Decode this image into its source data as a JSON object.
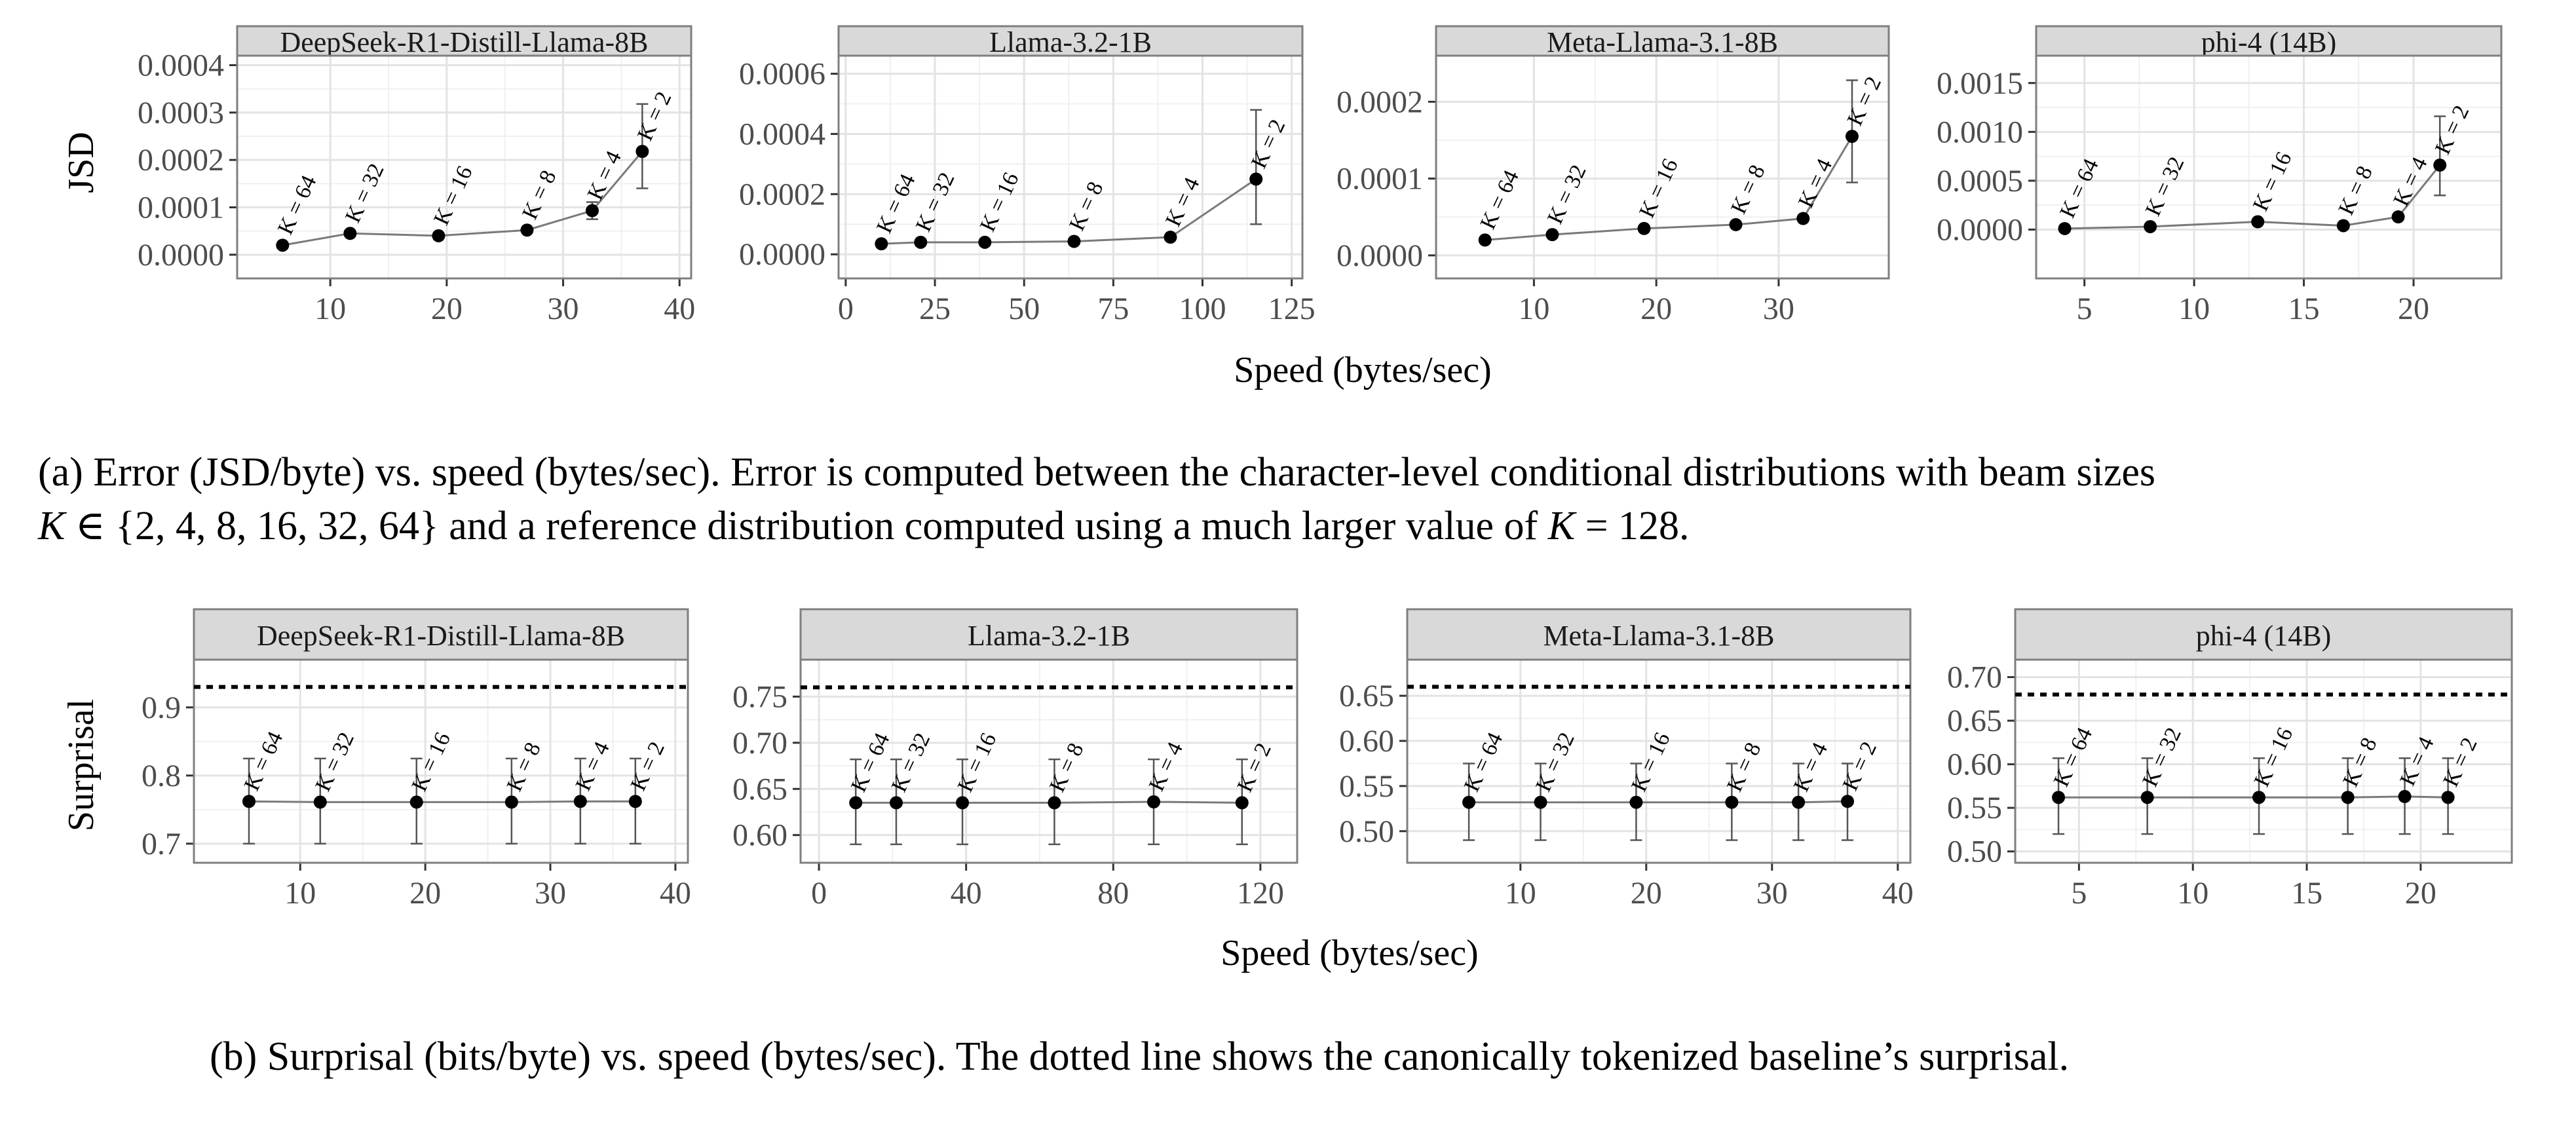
{
  "figure_a": {
    "y_title": "JSD",
    "x_title": "Speed (bytes/sec)",
    "caption_line1": "(a) Error (JSD/byte) vs. speed (bytes/sec). Error is computed between the character-level conditional distributions with beam sizes",
    "caption_line2_parts": [
      "K",
      " ∈ {2, 4, 8, 16, 32, 64} and a reference distribution computed using a much larger value of ",
      "K",
      " = 128."
    ]
  },
  "figure_b": {
    "y_title": "Surprisal",
    "x_title": "Speed (bytes/sec)",
    "caption": "(b) Surprisal (bits/byte) vs. speed (bytes/sec). The dotted line shows the canonically tokenized baseline’s surprisal."
  },
  "k_labels": [
    "K = 64",
    "K = 32",
    "K = 16",
    "K = 8",
    "K = 4",
    "K = 2"
  ],
  "chart_data": [
    {
      "type": "line",
      "row": "a",
      "title": "DeepSeek-R1-Distill-Llama-8B",
      "xlabel": "Speed (bytes/sec)",
      "ylabel": "JSD",
      "xlim": [
        2,
        41
      ],
      "ylim": [
        -5e-05,
        0.00042
      ],
      "xticks": [
        10,
        20,
        30,
        40
      ],
      "xtick_labels": [
        "10",
        "20",
        "30",
        "40"
      ],
      "yticks": [
        0,
        0.0001,
        0.0002,
        0.0003,
        0.0004
      ],
      "ytick_labels": [
        "0.0000",
        "0.0001",
        "0.0002",
        "0.0003",
        "0.0004"
      ],
      "x": [
        5.9,
        11.7,
        19.3,
        26.9,
        32.5,
        36.8
      ],
      "y": [
        2e-05,
        4.5e-05,
        4e-05,
        5.2e-05,
        9.3e-05,
        0.000218
      ],
      "err_low": [
        2e-05,
        4.5e-05,
        4e-05,
        5.2e-05,
        7.5e-05,
        0.00014
      ],
      "err_high": [
        2e-05,
        4.5e-05,
        4e-05,
        5.2e-05,
        0.000111,
        0.000318
      ]
    },
    {
      "type": "line",
      "row": "a",
      "title": "Llama-3.2-1B",
      "xlabel": "Speed (bytes/sec)",
      "ylabel": "JSD",
      "xlim": [
        -2,
        128
      ],
      "ylim": [
        -8e-05,
        0.00066
      ],
      "xticks": [
        0,
        25,
        50,
        75,
        100,
        125
      ],
      "xtick_labels": [
        "0",
        "25",
        "50",
        "75",
        "100",
        "125"
      ],
      "yticks": [
        0,
        0.0002,
        0.0004,
        0.0006
      ],
      "ytick_labels": [
        "0.0000",
        "0.0002",
        "0.0004",
        "0.0006"
      ],
      "x": [
        10,
        21,
        39,
        64,
        91,
        115
      ],
      "y": [
        3.5e-05,
        4e-05,
        4e-05,
        4.3e-05,
        5.7e-05,
        0.00025
      ],
      "err_low": [
        3.5e-05,
        4e-05,
        4e-05,
        4.3e-05,
        5.7e-05,
        0.0001
      ],
      "err_high": [
        3.5e-05,
        4e-05,
        4e-05,
        4.3e-05,
        5.7e-05,
        0.00048
      ]
    },
    {
      "type": "line",
      "row": "a",
      "title": "Meta-Llama-3.1-8B",
      "xlabel": "Speed (bytes/sec)",
      "ylabel": "JSD",
      "xlim": [
        2,
        39
      ],
      "ylim": [
        -3e-05,
        0.00026
      ],
      "xticks": [
        10,
        20,
        30
      ],
      "xtick_labels": [
        "10",
        "20",
        "30"
      ],
      "yticks": [
        0,
        0.0001,
        0.0002
      ],
      "ytick_labels": [
        "0.0000",
        "0.0001",
        "0.0002"
      ],
      "x": [
        6,
        11.5,
        19,
        26.5,
        32,
        36
      ],
      "y": [
        2e-05,
        2.7e-05,
        3.5e-05,
        4e-05,
        4.8e-05,
        0.000155
      ],
      "err_low": [
        2e-05,
        2.7e-05,
        3.5e-05,
        4e-05,
        4.8e-05,
        9.5e-05
      ],
      "err_high": [
        2e-05,
        2.7e-05,
        3.5e-05,
        4e-05,
        4.8e-05,
        0.000228
      ]
    },
    {
      "type": "line",
      "row": "a",
      "title": "phi-4 (14B)",
      "xlabel": "Speed (bytes/sec)",
      "ylabel": "JSD",
      "xlim": [
        2.8,
        24
      ],
      "ylim": [
        -0.0005,
        0.00178
      ],
      "xticks": [
        5,
        10,
        15,
        20
      ],
      "xtick_labels": [
        "5",
        "10",
        "15",
        "20"
      ],
      "yticks": [
        0,
        0.0005,
        0.001,
        0.0015
      ],
      "ytick_labels": [
        "0.0000",
        "0.0005",
        "0.0010",
        "0.0015"
      ],
      "x": [
        4.1,
        8,
        12.9,
        16.8,
        19.3,
        21.2
      ],
      "y": [
        1e-05,
        3e-05,
        8e-05,
        4e-05,
        0.00013,
        0.00066
      ],
      "err_low": [
        1e-05,
        3e-05,
        8e-05,
        4e-05,
        0.00013,
        0.00035
      ],
      "err_high": [
        1e-05,
        3e-05,
        8e-05,
        4e-05,
        0.00013,
        0.00116
      ]
    },
    {
      "type": "scatter",
      "row": "b",
      "title": "DeepSeek-R1-Distill-Llama-8B",
      "xlabel": "Speed (bytes/sec)",
      "ylabel": "Surprisal",
      "xlim": [
        1.5,
        41
      ],
      "ylim": [
        0.672,
        0.97
      ],
      "xticks": [
        10,
        20,
        30,
        40
      ],
      "xtick_labels": [
        "10",
        "20",
        "30",
        "40"
      ],
      "yticks": [
        0.7,
        0.8,
        0.9
      ],
      "ytick_labels": [
        "0.7",
        "0.8",
        "0.9"
      ],
      "baseline": 0.93,
      "x": [
        5.9,
        11.6,
        19.3,
        26.9,
        32.4,
        36.8
      ],
      "y": [
        0.762,
        0.761,
        0.761,
        0.761,
        0.762,
        0.762
      ],
      "err_low": [
        0.7,
        0.7,
        0.7,
        0.7,
        0.7,
        0.7
      ],
      "err_high": [
        0.825,
        0.825,
        0.825,
        0.825,
        0.825,
        0.825
      ]
    },
    {
      "type": "scatter",
      "row": "b",
      "title": "Llama-3.2-1B",
      "xlabel": "Speed (bytes/sec)",
      "ylabel": "Surprisal",
      "xlim": [
        -5,
        130
      ],
      "ylim": [
        0.57,
        0.79
      ],
      "xticks": [
        0,
        40,
        80,
        120
      ],
      "xtick_labels": [
        "0",
        "40",
        "80",
        "120"
      ],
      "yticks": [
        0.6,
        0.65,
        0.7,
        0.75
      ],
      "ytick_labels": [
        "0.60",
        "0.65",
        "0.70",
        "0.75"
      ],
      "baseline": 0.76,
      "x": [
        10,
        21,
        39,
        64,
        91,
        115
      ],
      "y": [
        0.635,
        0.635,
        0.635,
        0.635,
        0.636,
        0.635
      ],
      "err_low": [
        0.59,
        0.59,
        0.59,
        0.59,
        0.59,
        0.59
      ],
      "err_high": [
        0.682,
        0.682,
        0.682,
        0.682,
        0.682,
        0.682
      ]
    },
    {
      "type": "scatter",
      "row": "b",
      "title": "Meta-Llama-3.1-8B",
      "xlabel": "Speed (bytes/sec)",
      "ylabel": "Surprisal",
      "xlim": [
        1,
        41
      ],
      "ylim": [
        0.465,
        0.69
      ],
      "xticks": [
        10,
        20,
        30,
        40
      ],
      "xtick_labels": [
        "10",
        "20",
        "30",
        "40"
      ],
      "yticks": [
        0.5,
        0.55,
        0.6,
        0.65
      ],
      "ytick_labels": [
        "0.50",
        "0.55",
        "0.60",
        "0.65"
      ],
      "baseline": 0.66,
      "x": [
        5.9,
        11.6,
        19.2,
        26.8,
        32.1,
        36
      ],
      "y": [
        0.532,
        0.532,
        0.532,
        0.532,
        0.532,
        0.533
      ],
      "err_low": [
        0.49,
        0.49,
        0.49,
        0.49,
        0.49,
        0.49
      ],
      "err_high": [
        0.575,
        0.575,
        0.575,
        0.575,
        0.575,
        0.575
      ]
    },
    {
      "type": "scatter",
      "row": "b",
      "title": "phi-4 (14B)",
      "xlabel": "Speed (bytes/sec)",
      "ylabel": "Surprisal",
      "xlim": [
        2.2,
        24
      ],
      "ylim": [
        0.487,
        0.72
      ],
      "xticks": [
        5,
        10,
        15,
        20
      ],
      "xtick_labels": [
        "5",
        "10",
        "15",
        "20"
      ],
      "yticks": [
        0.5,
        0.55,
        0.6,
        0.65,
        0.7
      ],
      "ytick_labels": [
        "0.50",
        "0.55",
        "0.60",
        "0.65",
        "0.70"
      ],
      "baseline": 0.68,
      "x": [
        4.1,
        8,
        12.9,
        16.8,
        19.3,
        21.2
      ],
      "y": [
        0.562,
        0.562,
        0.562,
        0.562,
        0.563,
        0.562
      ],
      "err_low": [
        0.52,
        0.52,
        0.52,
        0.52,
        0.52,
        0.52
      ],
      "err_high": [
        0.607,
        0.607,
        0.607,
        0.607,
        0.607,
        0.607
      ]
    }
  ]
}
